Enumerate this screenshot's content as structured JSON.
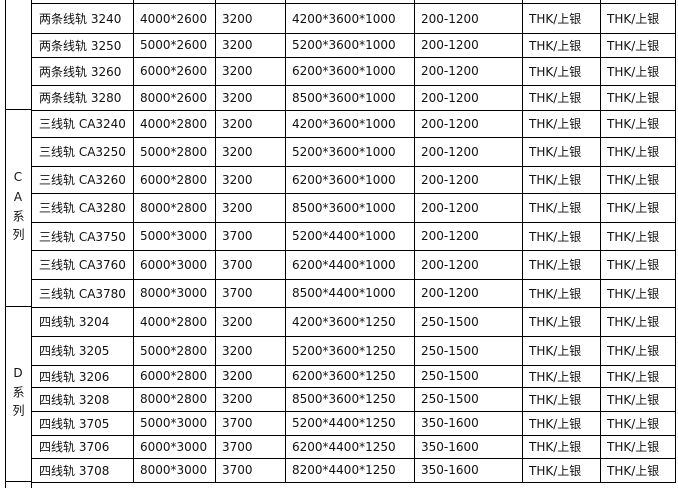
{
  "groups": [
    {
      "label": "",
      "start": 0,
      "count": 4
    },
    {
      "label": "CA系列",
      "start": 4,
      "count": 7
    },
    {
      "label": "D系列",
      "start": 11,
      "count": 7
    }
  ],
  "rows": [
    [
      "两条线轨 3240",
      "4000*2600",
      "3200",
      "4200*3600*1000",
      "200-1200",
      "THK/上银",
      "THK/上银"
    ],
    [
      "两条线轨 3250",
      "5000*2600",
      "3200",
      "5200*3600*1000",
      "200-1200",
      "THK/上银",
      "THK/上银"
    ],
    [
      "两条线轨 3260",
      "6000*2600",
      "3200",
      "6200*3600*1000",
      "200-1200",
      "THK/上银",
      "THK/上银"
    ],
    [
      "两条线轨 3280",
      "8000*2600",
      "3200",
      "8500*3600*1000",
      "200-1200",
      "THK/上银",
      "THK/上银"
    ],
    [
      "三线轨 CA3240",
      "4000*2800",
      "3200",
      "4200*3600*1000",
      "200-1200",
      "THK/上银",
      "THK/上银"
    ],
    [
      "三线轨 CA3250",
      "5000*2800",
      "3200",
      "5200*3600*1000",
      "200-1200",
      "THK/上银",
      "THK/上银"
    ],
    [
      "三线轨 CA3260",
      "6000*2800",
      "3200",
      "6200*3600*1000",
      "200-1200",
      "THK/上银",
      "THK/上银"
    ],
    [
      "三线轨 CA3280",
      "8000*2800",
      "3200",
      "8500*3600*1000",
      "200-1200",
      "THK/上银",
      "THK/上银"
    ],
    [
      "三线轨 CA3750",
      "5000*3000",
      "3700",
      "5200*4400*1000",
      "200-1200",
      "THK/上银",
      "THK/上银"
    ],
    [
      "三线轨 CA3760",
      "6000*3000",
      "3700",
      "6200*4400*1000",
      "200-1200",
      "THK/上银",
      "THK/上银"
    ],
    [
      "三线轨 CA3780",
      "8000*3000",
      "3700",
      "8500*4400*1000",
      "200-1200",
      "THK/上银",
      "THK/上银"
    ],
    [
      "四线轨 3204",
      "4000*2800",
      "3200",
      "4200*3600*1250",
      "250-1500",
      "THK/上银",
      "THK/上银"
    ],
    [
      "四线轨 3205",
      "5000*2800",
      "3200",
      "5200*3600*1250",
      "250-1500",
      "THK/上银",
      "THK/上银"
    ],
    [
      "四线轨 3206",
      "6000*2800",
      "3200",
      "6200*3600*1250",
      "250-1500",
      "THK/上银",
      "THK/上银"
    ],
    [
      "四线轨 3208",
      "8000*2800",
      "3200",
      "8500*3600*1250",
      "250-1500",
      "THK/上银",
      "THK/上银"
    ],
    [
      "四线轨 3705",
      "5000*3000",
      "3700",
      "5200*4400*1250",
      "350-1600",
      "THK/上银",
      "THK/上银"
    ],
    [
      "四线轨 3706",
      "6000*3000",
      "3700",
      "6200*4400*1250",
      "350-1600",
      "THK/上银",
      "THK/上银"
    ],
    [
      "四线轨 3708",
      "8000*3000",
      "3700",
      "8200*4400*1250",
      "350-1600",
      "THK/上银",
      "THK/上银"
    ]
  ]
}
